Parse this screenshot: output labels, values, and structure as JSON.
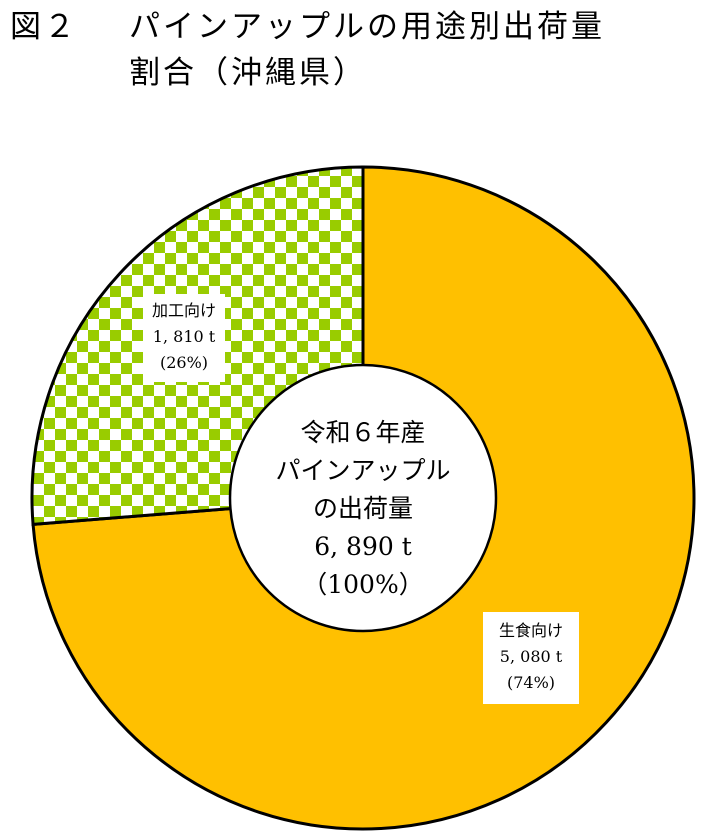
{
  "title": {
    "figure_no": "図２",
    "line1": "パインアップルの用途別出荷量",
    "line2": "割合（沖縄県）"
  },
  "colors": {
    "fresh": "#FFC000",
    "processing_pattern": "#99CC00",
    "processing_bg": "#FFFFFF",
    "outline": "#000000"
  },
  "center": {
    "line1": "令和６年産",
    "line2": "パインアップル",
    "line3": "の出荷量",
    "line4": "6, 890 t",
    "line5": "（100%）"
  },
  "labels": {
    "processing": {
      "name": "加工向け",
      "value": "1, 810 t",
      "pct": "(26%)"
    },
    "fresh": {
      "name": "生食向け",
      "value": "5, 080 t",
      "pct": "(74%)"
    }
  },
  "chart_data": {
    "type": "pie",
    "variant": "doughnut",
    "title": "図２ パインアップルの用途別出荷量割合（沖縄県）",
    "center_label": "令和６年産 パインアップルの出荷量 6,890 t (100%)",
    "total": 6890,
    "unit": "t",
    "categories": [
      "加工向け",
      "生食向け"
    ],
    "values": [
      1810,
      5080
    ],
    "percentages": [
      26,
      74
    ],
    "colors": [
      "#99CC00 checkerboard",
      "#FFC000"
    ],
    "start_angle_deg": 0,
    "direction": "clockwise from 12 o'clock, 生食向け first",
    "legend": "none (data labels on slices)"
  }
}
